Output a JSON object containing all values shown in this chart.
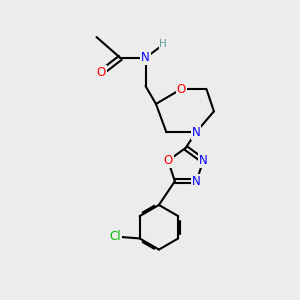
{
  "background_color": "#ececec",
  "atom_colors": {
    "O": "#ff0000",
    "N": "#0000ff",
    "Cl": "#00bb00",
    "C": "#000000",
    "H": "#5f9ea0"
  },
  "bond_color": "#000000",
  "figsize": [
    3.0,
    3.0
  ],
  "dpi": 100
}
